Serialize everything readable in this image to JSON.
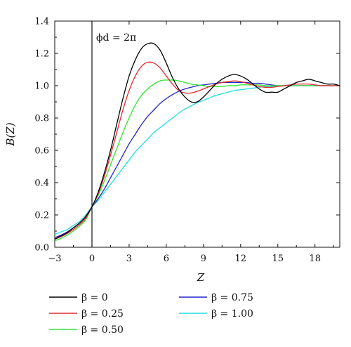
{
  "chart_data": {
    "type": "line",
    "xlabel": "Z",
    "ylabel": "B(Z)",
    "xlim": [
      -3,
      20
    ],
    "ylim": [
      0,
      1.4
    ],
    "xticks": [
      -3,
      0,
      3,
      6,
      9,
      12,
      15,
      18
    ],
    "yticks": [
      0.0,
      0.2,
      0.4,
      0.6,
      0.8,
      1.0,
      1.2,
      1.4
    ],
    "ytick_labels": [
      "0.0",
      "0.2",
      "0.4",
      "0.6",
      "0.8",
      "1.0",
      "1.2",
      "1.4"
    ],
    "grid": false,
    "legend_position": "bottom",
    "annotation": "ϕd = 2π",
    "vertical_line_x": 0,
    "x": [
      -3,
      -2.5,
      -2,
      -1.5,
      -1,
      -0.5,
      0,
      0.5,
      1,
      1.5,
      2,
      2.5,
      3,
      3.5,
      4,
      4.5,
      5,
      5.5,
      6,
      6.5,
      7,
      7.5,
      8,
      8.5,
      9,
      9.5,
      10,
      10.5,
      11,
      11.5,
      12,
      12.5,
      13,
      13.5,
      14,
      14.5,
      15,
      15.5,
      16,
      16.5,
      17,
      17.5,
      18,
      18.5,
      19,
      19.5,
      20
    ],
    "series": [
      {
        "name": "β = 0",
        "color": "#000000",
        "values": [
          0.05,
          0.07,
          0.09,
          0.12,
          0.15,
          0.19,
          0.25,
          0.34,
          0.46,
          0.6,
          0.76,
          0.92,
          1.06,
          1.16,
          1.23,
          1.26,
          1.26,
          1.22,
          1.14,
          1.05,
          0.98,
          0.93,
          0.9,
          0.9,
          0.93,
          0.97,
          1.01,
          1.04,
          1.06,
          1.07,
          1.06,
          1.04,
          1.01,
          0.98,
          0.96,
          0.96,
          0.96,
          0.98,
          1.0,
          1.02,
          1.03,
          1.04,
          1.03,
          1.02,
          1.01,
          1.01,
          1.0
        ]
      },
      {
        "name": "β = 0.25",
        "color": "#e8262a",
        "values": [
          0.05,
          0.065,
          0.085,
          0.11,
          0.14,
          0.18,
          0.25,
          0.33,
          0.44,
          0.57,
          0.71,
          0.85,
          0.97,
          1.06,
          1.12,
          1.145,
          1.14,
          1.11,
          1.06,
          1.01,
          0.97,
          0.955,
          0.955,
          0.965,
          0.98,
          0.995,
          1.01,
          1.02,
          1.025,
          1.03,
          1.025,
          1.015,
          1.005,
          0.995,
          0.99,
          0.99,
          0.995,
          1.0,
          1.005,
          1.01,
          1.01,
          1.01,
          1.005,
          1.0,
          1.0,
          1.0,
          1.0
        ]
      },
      {
        "name": "β = 0.50",
        "color": "#2ee82e",
        "values": [
          0.04,
          0.055,
          0.075,
          0.1,
          0.13,
          0.17,
          0.25,
          0.32,
          0.41,
          0.51,
          0.61,
          0.71,
          0.8,
          0.88,
          0.94,
          0.98,
          1.01,
          1.03,
          1.035,
          1.035,
          1.03,
          1.02,
          1.01,
          1.005,
          1.0,
          0.995,
          0.995,
          0.995,
          1.0,
          1.0,
          1.005,
          1.005,
          1.005,
          1.005,
          1.0,
          1.0,
          1.0,
          1.0,
          1.0,
          1.0,
          1.0,
          1.0,
          1.0,
          1.0,
          1.0,
          1.0,
          1.0
        ]
      },
      {
        "name": "β = 0.75",
        "color": "#2222cc",
        "values": [
          0.06,
          0.075,
          0.095,
          0.12,
          0.15,
          0.19,
          0.25,
          0.3,
          0.36,
          0.43,
          0.5,
          0.57,
          0.64,
          0.7,
          0.76,
          0.81,
          0.85,
          0.89,
          0.92,
          0.945,
          0.965,
          0.98,
          0.99,
          1.0,
          1.005,
          1.01,
          1.015,
          1.02,
          1.02,
          1.02,
          1.02,
          1.02,
          1.015,
          1.015,
          1.01,
          1.005,
          1.0,
          1.0,
          1.0,
          1.0,
          1.0,
          1.0,
          1.0,
          1.0,
          1.0,
          1.0,
          1.0
        ]
      },
      {
        "name": "β = 1.00",
        "color": "#22dddd",
        "values": [
          0.08,
          0.095,
          0.11,
          0.135,
          0.16,
          0.2,
          0.25,
          0.29,
          0.34,
          0.39,
          0.44,
          0.49,
          0.54,
          0.59,
          0.63,
          0.67,
          0.71,
          0.74,
          0.77,
          0.8,
          0.83,
          0.855,
          0.875,
          0.895,
          0.91,
          0.925,
          0.94,
          0.95,
          0.96,
          0.97,
          0.975,
          0.98,
          0.985,
          0.99,
          0.995,
          0.995,
          1.0,
          1.0,
          1.0,
          1.0,
          1.0,
          1.0,
          1.0,
          1.0,
          1.0,
          1.0,
          1.0
        ]
      }
    ]
  }
}
